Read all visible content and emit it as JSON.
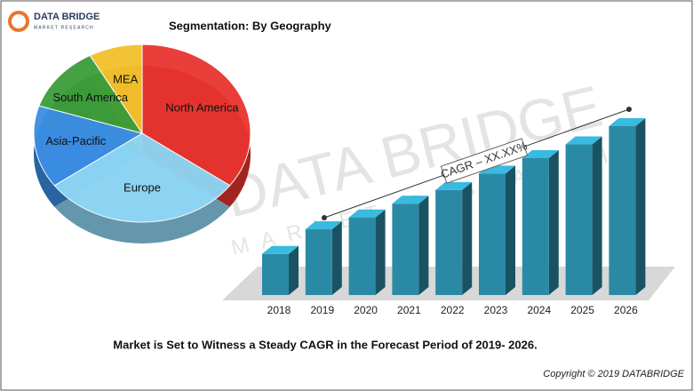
{
  "header": {
    "logo_title": "DATA BRIDGE",
    "logo_subtitle": "MARKET RESEARCH"
  },
  "watermark": {
    "title": "DATA BRIDGE",
    "subtitle": "MARKET RESEARCH"
  },
  "chart_data": [
    {
      "type": "pie",
      "title": "Segmentation: By Geography",
      "categories": [
        "North America",
        "Europe",
        "Asia-Pacific",
        "South America",
        "MEA"
      ],
      "values": [
        35,
        30,
        15,
        12,
        8
      ],
      "colors": [
        "#e8342f",
        "#8fd8f6",
        "#3b8ee6",
        "#3c9e3a",
        "#f3c02c"
      ]
    },
    {
      "type": "bar",
      "categories": [
        "2018",
        "2019",
        "2020",
        "2021",
        "2022",
        "2023",
        "2024",
        "2025",
        "2026"
      ],
      "values": [
        45,
        72,
        85,
        100,
        115,
        133,
        150,
        165,
        185
      ],
      "color": "#2a8aa5",
      "annotation": "CAGR – XX.XX%"
    }
  ],
  "caption": "Market is Set to Witness a Steady CAGR in the Forecast Period of 2019- 2026.",
  "footer": "Copyright © 2019 DATABRIDGE"
}
